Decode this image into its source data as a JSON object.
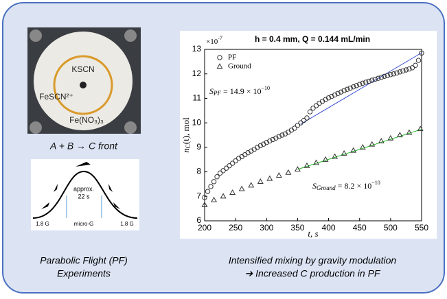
{
  "photo": {
    "labels": [
      "KSCN",
      "FeSCN²⁺",
      "Fe(NO₃)₃"
    ],
    "caption": "A + B → C front"
  },
  "diagram": {
    "peak_label": [
      "approx.",
      "22 s"
    ],
    "phase_labels": [
      "1.8 G",
      "micro-G",
      "1.8 G"
    ]
  },
  "captions": {
    "left": [
      "Parabolic Flight (PF)",
      "Experiments"
    ],
    "right": [
      "Intensified mixing by gravity modulation",
      "➔ Increased C production in PF"
    ]
  },
  "chart_data": {
    "type": "scatter",
    "title": "h = 0.4 mm, Q = 0.144 mL/min",
    "x_label": "t, s",
    "y_label": {
      "symbol": "n",
      "subscript": "C",
      "text": "(t), mol"
    },
    "y_multiplier": {
      "text": "×10",
      "exponent": "-7"
    },
    "xlim": [
      200,
      550
    ],
    "xticks": [
      200,
      250,
      300,
      350,
      400,
      450,
      500,
      550
    ],
    "ylim": [
      6,
      13
    ],
    "yticks": [
      6,
      7,
      8,
      9,
      10,
      11,
      12,
      13
    ],
    "series": [
      {
        "name": "PF",
        "marker": "circle",
        "color": "#333333",
        "x": [
          200,
          205,
          210,
          215,
          220,
          225,
          230,
          235,
          240,
          245,
          250,
          255,
          260,
          265,
          270,
          275,
          280,
          285,
          290,
          295,
          300,
          305,
          310,
          315,
          320,
          325,
          330,
          335,
          340,
          345,
          350,
          355,
          360,
          365,
          370,
          375,
          380,
          385,
          390,
          395,
          400,
          405,
          410,
          415,
          420,
          425,
          430,
          435,
          440,
          445,
          450,
          455,
          460,
          465,
          470,
          475,
          480,
          485,
          490,
          495,
          500,
          505,
          510,
          515,
          520,
          525,
          530,
          535,
          540,
          545,
          550
        ],
        "values": [
          6.95,
          7.2,
          7.4,
          7.6,
          7.8,
          7.95,
          8.05,
          8.15,
          8.25,
          8.35,
          8.45,
          8.55,
          8.62,
          8.7,
          8.78,
          8.85,
          8.92,
          9.0,
          9.07,
          9.13,
          9.2,
          9.26,
          9.32,
          9.38,
          9.44,
          9.5,
          9.55,
          9.62,
          9.7,
          9.78,
          9.9,
          10.0,
          10.1,
          10.2,
          10.45,
          10.6,
          10.7,
          10.8,
          10.88,
          10.95,
          11.02,
          11.08,
          11.14,
          11.2,
          11.26,
          11.32,
          11.37,
          11.42,
          11.47,
          11.52,
          11.57,
          11.62,
          11.66,
          11.7,
          11.74,
          11.78,
          11.82,
          11.86,
          11.9,
          11.93,
          11.97,
          12.0,
          12.04,
          12.08,
          12.12,
          12.16,
          12.2,
          12.25,
          12.35,
          12.55,
          12.85
        ]
      },
      {
        "name": "Ground",
        "marker": "triangle",
        "color": "#333333",
        "x": [
          200,
          215,
          230,
          245,
          260,
          275,
          290,
          305,
          320,
          335,
          350,
          365,
          380,
          395,
          410,
          425,
          440,
          455,
          470,
          485,
          500,
          515,
          530,
          548
        ],
        "values": [
          6.65,
          6.85,
          7.0,
          7.15,
          7.3,
          7.45,
          7.6,
          7.72,
          7.85,
          7.97,
          8.1,
          8.25,
          8.37,
          8.5,
          8.62,
          8.75,
          8.87,
          9.0,
          9.12,
          9.25,
          9.37,
          9.5,
          9.6,
          9.75
        ]
      }
    ],
    "fits": [
      {
        "color": "#3a4fd6",
        "x": [
          355,
          550
        ],
        "values": [
          9.95,
          12.86
        ]
      },
      {
        "color": "#22bb22",
        "x": [
          350,
          550
        ],
        "values": [
          8.1,
          9.74
        ]
      }
    ],
    "annotations": [
      {
        "symbol": "S",
        "subscript": "PF",
        "text": " = 14.9 × 10",
        "exponent": "−10"
      },
      {
        "symbol": "S",
        "subscript": "Ground",
        "text": " = 8.2 × 10",
        "exponent": "−10"
      }
    ]
  }
}
